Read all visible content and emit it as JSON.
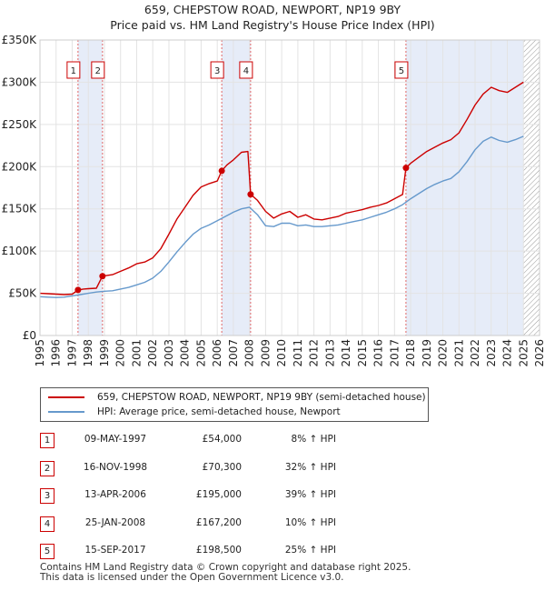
{
  "chart_data": {
    "type": "line",
    "title": "659, CHEPSTOW ROAD, NEWPORT, NP19 9BY",
    "subtitle": "Price paid vs. HM Land Registry's House Price Index (HPI)",
    "xlim": [
      1995,
      2026
    ],
    "ylim": [
      0,
      350000
    ],
    "x_ticks": [
      "1995",
      "1996",
      "1997",
      "1998",
      "1999",
      "2000",
      "2001",
      "2002",
      "2003",
      "2004",
      "2005",
      "2006",
      "2007",
      "2008",
      "2009",
      "2010",
      "2011",
      "2012",
      "2013",
      "2014",
      "2015",
      "2016",
      "2017",
      "2018",
      "2019",
      "2020",
      "2021",
      "2022",
      "2023",
      "2024",
      "2025",
      "2026"
    ],
    "y_ticks": [
      {
        "value": 0,
        "label": "£0"
      },
      {
        "value": 50000,
        "label": "£50K"
      },
      {
        "value": 100000,
        "label": "£100K"
      },
      {
        "value": 150000,
        "label": "£150K"
      },
      {
        "value": 200000,
        "label": "£200K"
      },
      {
        "value": 250000,
        "label": "£250K"
      },
      {
        "value": 300000,
        "label": "£300K"
      },
      {
        "value": 350000,
        "label": "£350K"
      }
    ],
    "series": [
      {
        "name": "659, CHEPSTOW ROAD, NEWPORT, NP19 9BY (semi-detached house)",
        "color": "#cc0000",
        "points": [
          [
            1995,
            50000
          ],
          [
            1995.5,
            49500
          ],
          [
            1996,
            49000
          ],
          [
            1996.5,
            48500
          ],
          [
            1997,
            49000
          ],
          [
            1997.36,
            54000
          ],
          [
            1997.7,
            55000
          ],
          [
            1998,
            55500
          ],
          [
            1998.5,
            56000
          ],
          [
            1998.88,
            70300
          ],
          [
            1999.5,
            72000
          ],
          [
            2000,
            76000
          ],
          [
            2000.5,
            80000
          ],
          [
            2001,
            85000
          ],
          [
            2001.5,
            87000
          ],
          [
            2002,
            92000
          ],
          [
            2002.5,
            103000
          ],
          [
            2003,
            120000
          ],
          [
            2003.5,
            138000
          ],
          [
            2004,
            152000
          ],
          [
            2004.5,
            166000
          ],
          [
            2005,
            176000
          ],
          [
            2005.5,
            180000
          ],
          [
            2006,
            183000
          ],
          [
            2006.28,
            195000
          ],
          [
            2006.6,
            202000
          ],
          [
            2007,
            208000
          ],
          [
            2007.5,
            217000
          ],
          [
            2007.9,
            218000
          ],
          [
            2008.07,
            167200
          ],
          [
            2008.5,
            160000
          ],
          [
            2009,
            147000
          ],
          [
            2009.5,
            139000
          ],
          [
            2010,
            144000
          ],
          [
            2010.5,
            147000
          ],
          [
            2011,
            140000
          ],
          [
            2011.5,
            143000
          ],
          [
            2012,
            138000
          ],
          [
            2012.5,
            137000
          ],
          [
            2013,
            139000
          ],
          [
            2013.5,
            141000
          ],
          [
            2014,
            145000
          ],
          [
            2014.5,
            147000
          ],
          [
            2015,
            149000
          ],
          [
            2015.5,
            152000
          ],
          [
            2016,
            154000
          ],
          [
            2016.5,
            157000
          ],
          [
            2017,
            162000
          ],
          [
            2017.5,
            167000
          ],
          [
            2017.71,
            198500
          ],
          [
            2018,
            204000
          ],
          [
            2018.5,
            211000
          ],
          [
            2019,
            218000
          ],
          [
            2019.5,
            223000
          ],
          [
            2020,
            228000
          ],
          [
            2020.5,
            232000
          ],
          [
            2021,
            240000
          ],
          [
            2021.5,
            256000
          ],
          [
            2022,
            273000
          ],
          [
            2022.5,
            286000
          ],
          [
            2023,
            294000
          ],
          [
            2023.5,
            290000
          ],
          [
            2024,
            288000
          ],
          [
            2024.5,
            294000
          ],
          [
            2025,
            300000
          ]
        ]
      },
      {
        "name": "HPI: Average price, semi-detached house, Newport",
        "color": "#6699cc",
        "points": [
          [
            1995,
            46000
          ],
          [
            1995.5,
            45500
          ],
          [
            1996,
            45000
          ],
          [
            1996.5,
            45500
          ],
          [
            1997,
            47000
          ],
          [
            1997.5,
            48500
          ],
          [
            1998,
            50000
          ],
          [
            1998.5,
            51500
          ],
          [
            1999,
            52500
          ],
          [
            1999.5,
            53000
          ],
          [
            2000,
            55000
          ],
          [
            2000.5,
            57000
          ],
          [
            2001,
            60000
          ],
          [
            2001.5,
            63000
          ],
          [
            2002,
            68000
          ],
          [
            2002.5,
            76000
          ],
          [
            2003,
            87000
          ],
          [
            2003.5,
            99000
          ],
          [
            2004,
            110000
          ],
          [
            2004.5,
            120000
          ],
          [
            2005,
            127000
          ],
          [
            2005.5,
            131000
          ],
          [
            2006,
            136000
          ],
          [
            2006.5,
            141000
          ],
          [
            2007,
            146000
          ],
          [
            2007.5,
            150000
          ],
          [
            2008,
            152000
          ],
          [
            2008.5,
            143000
          ],
          [
            2009,
            130000
          ],
          [
            2009.5,
            129000
          ],
          [
            2010,
            133000
          ],
          [
            2010.5,
            133000
          ],
          [
            2011,
            130000
          ],
          [
            2011.5,
            131000
          ],
          [
            2012,
            129000
          ],
          [
            2012.5,
            129000
          ],
          [
            2013,
            130000
          ],
          [
            2013.5,
            131000
          ],
          [
            2014,
            133000
          ],
          [
            2014.5,
            135000
          ],
          [
            2015,
            137000
          ],
          [
            2015.5,
            140000
          ],
          [
            2016,
            143000
          ],
          [
            2016.5,
            146000
          ],
          [
            2017,
            150000
          ],
          [
            2017.5,
            155000
          ],
          [
            2018,
            162000
          ],
          [
            2018.5,
            168000
          ],
          [
            2019,
            174000
          ],
          [
            2019.5,
            179000
          ],
          [
            2020,
            183000
          ],
          [
            2020.5,
            186000
          ],
          [
            2021,
            194000
          ],
          [
            2021.5,
            206000
          ],
          [
            2022,
            220000
          ],
          [
            2022.5,
            230000
          ],
          [
            2023,
            235000
          ],
          [
            2023.5,
            231000
          ],
          [
            2024,
            229000
          ],
          [
            2024.5,
            232000
          ],
          [
            2025,
            236000
          ]
        ]
      }
    ],
    "sales": [
      {
        "id": "1",
        "x": 1997.36,
        "value": 54000
      },
      {
        "id": "2",
        "x": 1998.88,
        "value": 70300
      },
      {
        "id": "3",
        "x": 2006.28,
        "value": 195000
      },
      {
        "id": "4",
        "x": 2008.07,
        "value": 167200
      },
      {
        "id": "5",
        "x": 2017.71,
        "value": 198500
      }
    ],
    "shaded_periods": [
      [
        1997.36,
        1998.88
      ],
      [
        2006.28,
        2008.07
      ],
      [
        2017.71,
        2025.0
      ]
    ],
    "hatched_from": 2025.0
  },
  "legend": {
    "property_label": "659, CHEPSTOW ROAD, NEWPORT, NP19 9BY (semi-detached house)",
    "hpi_label": "HPI: Average price, semi-detached house, Newport"
  },
  "sales_table": [
    {
      "num": "1",
      "date": "09-MAY-1997",
      "price": "£54,000",
      "hpi": "8% ↑ HPI"
    },
    {
      "num": "2",
      "date": "16-NOV-1998",
      "price": "£70,300",
      "hpi": "32% ↑ HPI"
    },
    {
      "num": "3",
      "date": "13-APR-2006",
      "price": "£195,000",
      "hpi": "39% ↑ HPI"
    },
    {
      "num": "4",
      "date": "25-JAN-2008",
      "price": "£167,200",
      "hpi": "10% ↑ HPI"
    },
    {
      "num": "5",
      "date": "15-SEP-2017",
      "price": "£198,500",
      "hpi": "25% ↑ HPI"
    }
  ],
  "footer": {
    "line1": "Contains HM Land Registry data © Crown copyright and database right 2025.",
    "line2": "This data is licensed under the Open Government Licence v3.0."
  }
}
